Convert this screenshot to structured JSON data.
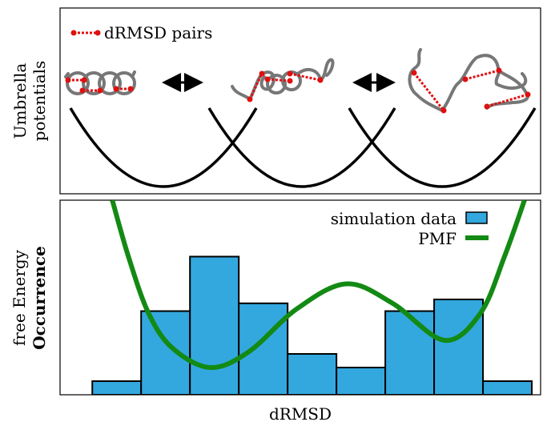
{
  "top_panel": {
    "y_label_lines": [
      "Umbrella",
      "potentials"
    ],
    "legend": "dRMSD pairs"
  },
  "chart_data": {
    "type": "histogram",
    "y_label_parts": [
      {
        "text": "free Energy",
        "color": "#138a13"
      },
      {
        "text": "Occurrence",
        "color": "#33a8df"
      }
    ],
    "x_label": "dRMSD",
    "bins": [
      0,
      1,
      2,
      3,
      4,
      5,
      6,
      7,
      8,
      9
    ],
    "values": [
      7,
      43,
      71,
      47,
      21,
      14,
      43,
      49,
      7
    ],
    "xlim": [
      -0.66,
      9.18
    ],
    "ylim": [
      0,
      100
    ],
    "series": [
      {
        "name": "simulation data",
        "color": "#33a8df",
        "kind": "bars"
      },
      {
        "name": "PMF",
        "color": "#138a13",
        "kind": "line",
        "x": [
          0.41,
          0.74,
          1.15,
          1.64,
          2.41,
          3.2,
          4.18,
          5.2,
          6.15,
          7.21,
          7.95,
          8.44,
          8.85
        ],
        "values": [
          100,
          71,
          42,
          24,
          14,
          22,
          44,
          57,
          47,
          28,
          42,
          71,
          100
        ]
      }
    ],
    "legend": "upper right"
  }
}
